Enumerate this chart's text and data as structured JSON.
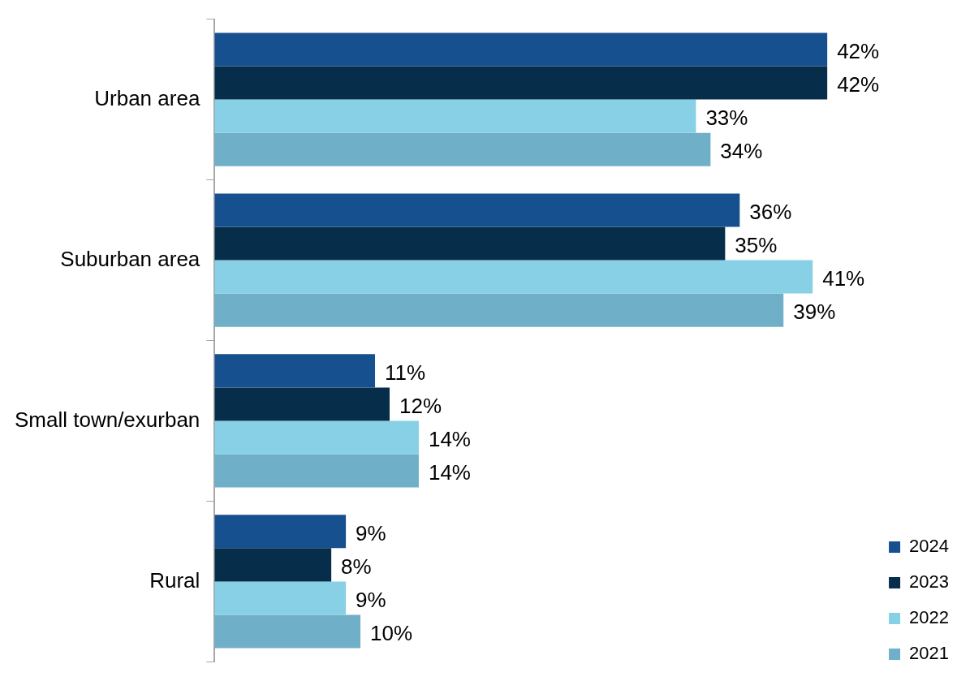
{
  "chart_data": {
    "type": "bar",
    "orientation": "horizontal",
    "categories": [
      "Urban area",
      "Suburban area",
      "Small town/exurban",
      "Rural"
    ],
    "series": [
      {
        "name": "2024",
        "color": "#17508e",
        "values": [
          42,
          36,
          11,
          9
        ],
        "value_labels": [
          "42%",
          "36%",
          "11%",
          "9%"
        ]
      },
      {
        "name": "2023",
        "color": "#062e4b",
        "values": [
          42,
          35,
          12,
          8
        ],
        "value_labels": [
          "42%",
          "35%",
          "12%",
          "8%"
        ]
      },
      {
        "name": "2022",
        "color": "#87d0e6",
        "values": [
          33,
          41,
          14,
          9
        ],
        "value_labels": [
          "33%",
          "41%",
          "14%",
          "9%"
        ]
      },
      {
        "name": "2021",
        "color": "#6fb0c8",
        "values": [
          34,
          39,
          14,
          10
        ],
        "value_labels": [
          "34%",
          "39%",
          "14%",
          "10%"
        ]
      }
    ],
    "legend": "bottom right"
  }
}
